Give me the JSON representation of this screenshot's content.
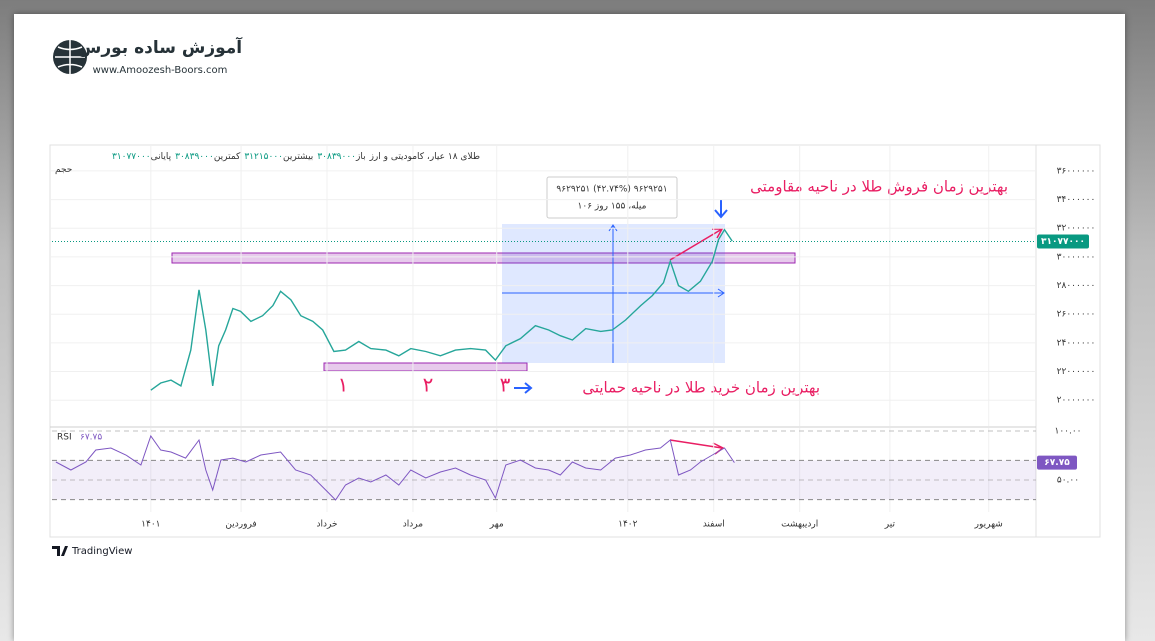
{
  "logo": {
    "title": "آموزش ساده بورس",
    "url": "www.Amoozesh-Boors.com"
  },
  "annotations": {
    "sell": "بهترین زمان فروش طلا در ناحیه مقاومتی",
    "buy": "بهترین زمان خرید طلا در ناحیه حمایتی",
    "one": "۱",
    "two": "۲",
    "three": "۳",
    "measure_change": "۹۶۲۹۲۵۱ (۴۲.۷۴%) ۹۶۲۹۲۵۱",
    "measure_span": "۱۰۶ میله، ۱۵۵ روز"
  },
  "footer": "TradingView",
  "chart_data": [
    {
      "type": "line",
      "title": "طلای ۱۸ عیار، کامودیتی و ارز",
      "volume_label": "حجم",
      "ohlc": [
        {
          "name": "باز",
          "value": {
            "value": 30839000,
            "label": "۳۰۸۳۹۰۰۰"
          }
        },
        {
          "name": "بیشترین",
          "value": {
            "value": 31215000,
            "label": "۳۱۲۱۵۰۰۰"
          }
        },
        {
          "name": "کمترین",
          "value": {
            "value": 30839000,
            "label": "۳۰۸۳۹۰۰۰"
          }
        },
        {
          "name": "پایانی",
          "value": {
            "value": 31077000,
            "label": "۳۱۰۷۷۰۰۰"
          }
        }
      ],
      "last_price": {
        "value": 31077000,
        "label": "۳۱۰۷۷۰۰۰"
      },
      "color": "#26a69a",
      "x": [
        0,
        0.23,
        0.47,
        0.7,
        0.93,
        1.12,
        1.28,
        1.44,
        1.58,
        1.74,
        1.91,
        2.09,
        2.33,
        2.6,
        2.84,
        3.02,
        3.26,
        3.49,
        3.77,
        4.0,
        4.26,
        4.53,
        4.84,
        5.12,
        5.47,
        5.77,
        6.05,
        6.4,
        6.74,
        7.09,
        7.44,
        7.79,
        8.02,
        8.26,
        8.6,
        8.95,
        9.26,
        9.53,
        9.81,
        10.12,
        10.47,
        10.74,
        11.05,
        11.4,
        11.67,
        11.93,
        12.09,
        12.28,
        12.51,
        12.79,
        13.07,
        13.21,
        13.35,
        13.53
      ],
      "values": [
        20700000,
        21200000,
        21400000,
        21000000,
        23500000,
        27700000,
        24900000,
        21000000,
        23800000,
        24900000,
        26400000,
        26200000,
        25500000,
        25900000,
        26600000,
        27600000,
        27000000,
        25900000,
        25500000,
        24900000,
        23400000,
        23500000,
        24100000,
        23600000,
        23500000,
        23100000,
        23600000,
        23400000,
        23100000,
        23500000,
        23600000,
        23500000,
        22800000,
        23800000,
        24300000,
        25200000,
        24900000,
        24500000,
        24200000,
        25000000,
        24800000,
        24900000,
        25600000,
        26600000,
        27300000,
        28200000,
        29700000,
        28000000,
        27600000,
        28300000,
        29700000,
        31200000,
        31900000,
        31100000
      ],
      "xlim": [
        -2.3,
        20.6
      ],
      "xticks": [
        {
          "value": 0,
          "label": "۱۴۰۱"
        },
        {
          "value": 2.1,
          "label": "فروردین"
        },
        {
          "value": 4.1,
          "label": "خرداد"
        },
        {
          "value": 6.1,
          "label": "مرداد"
        },
        {
          "value": 8.05,
          "label": "مهر"
        },
        {
          "value": 11.1,
          "label": "۱۴۰۲"
        },
        {
          "value": 13.1,
          "label": "اسفند"
        },
        {
          "value": 15.1,
          "label": "اردیبهشت"
        },
        {
          "value": 17.2,
          "label": "تیر"
        },
        {
          "value": 19.5,
          "label": "شهریور"
        }
      ],
      "ylim": [
        18200000,
        37600000
      ],
      "yticks": [
        {
          "value": 36000000,
          "label": "۳۶۰۰۰۰۰۰"
        },
        {
          "value": 34000000,
          "label": "۳۴۰۰۰۰۰۰"
        },
        {
          "value": 32000000,
          "label": "۳۲۰۰۰۰۰۰"
        },
        {
          "value": 30000000,
          "label": "۳۰۰۰۰۰۰۰"
        },
        {
          "value": 28000000,
          "label": "۲۸۰۰۰۰۰۰"
        },
        {
          "value": 26000000,
          "label": "۲۶۰۰۰۰۰۰"
        },
        {
          "value": 24000000,
          "label": "۲۴۰۰۰۰۰۰"
        },
        {
          "value": 22000000,
          "label": "۲۲۰۰۰۰۰۰"
        },
        {
          "value": 20000000,
          "label": "۲۰۰۰۰۰۰۰"
        }
      ],
      "grid": true
    },
    {
      "type": "line",
      "title": "RSI",
      "color": "#7e57c2",
      "last_value": {
        "value": 67.75,
        "label": "۶۷.۷۵"
      },
      "x": [
        -2.21,
        -1.86,
        -1.51,
        -1.28,
        -0.93,
        -0.58,
        -0.23,
        0,
        0.23,
        0.47,
        0.81,
        1.12,
        1.28,
        1.44,
        1.63,
        1.91,
        2.21,
        2.56,
        3.02,
        3.37,
        3.72,
        4.07,
        4.3,
        4.53,
        4.84,
        5.12,
        5.47,
        5.77,
        6.05,
        6.4,
        6.74,
        7.09,
        7.44,
        7.79,
        8.02,
        8.26,
        8.6,
        8.95,
        9.26,
        9.53,
        9.81,
        10.12,
        10.47,
        10.81,
        11.16,
        11.51,
        11.86,
        12.09,
        12.28,
        12.56,
        12.79,
        13.07,
        13.35,
        13.58
      ],
      "values": [
        68.4,
        60.2,
        68.4,
        80.6,
        82.7,
        75.5,
        65.3,
        94.9,
        80.6,
        78.6,
        72.4,
        90.8,
        60.2,
        39.8,
        70.4,
        72.4,
        68.4,
        75.5,
        78.6,
        60.2,
        55.1,
        39.8,
        29.6,
        44.9,
        52.0,
        48.0,
        55.1,
        44.9,
        60.2,
        52.0,
        58.2,
        62.2,
        55.1,
        50.0,
        31.6,
        65.3,
        70.4,
        62.2,
        60.2,
        55.1,
        68.4,
        62.2,
        60.2,
        72.4,
        75.5,
        80.6,
        82.7,
        90.8,
        55.1,
        60.2,
        68.4,
        75.5,
        82.7,
        67.75
      ],
      "xlim": [
        -2.3,
        20.6
      ],
      "ylim": [
        21.4,
        103.1
      ],
      "yticks": [
        {
          "value": 100,
          "label": "۱۰۰.۰۰"
        },
        {
          "value": 50,
          "label": "۵۰.۰۰"
        }
      ],
      "bands": [
        30,
        70
      ]
    }
  ]
}
